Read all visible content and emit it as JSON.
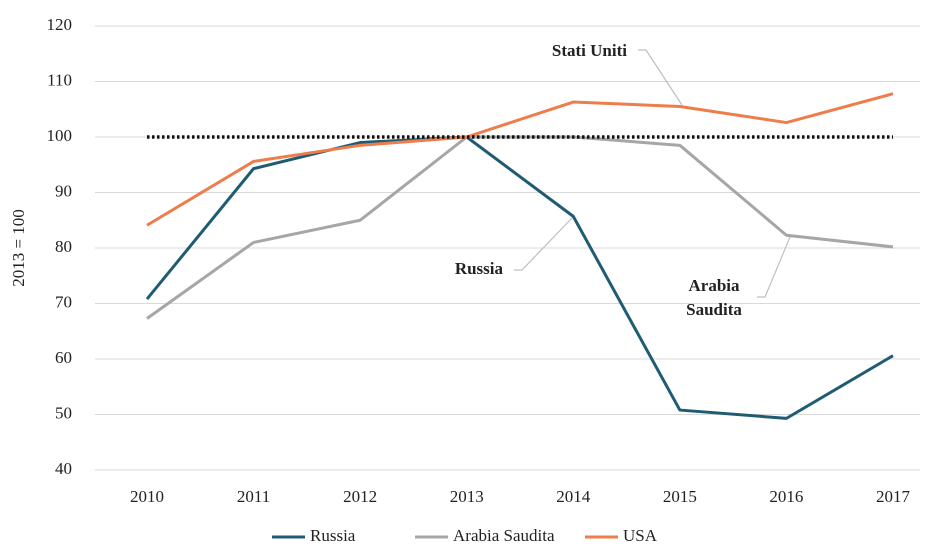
{
  "chart_data": {
    "type": "line",
    "y_label": "2013 = 100",
    "x": [
      "2010",
      "2011",
      "2012",
      "2013",
      "2014",
      "2015",
      "2016",
      "2017"
    ],
    "series": [
      {
        "name": "Russia",
        "color": "#1f5c73",
        "values": [
          70.8,
          94.3,
          99,
          100,
          85.7,
          50.8,
          49.3,
          60.6
        ]
      },
      {
        "name": "Arabia Saudita",
        "color": "#a6a6a6",
        "values": [
          67.3,
          81,
          85,
          100,
          100,
          98.5,
          82.3,
          80.2
        ]
      },
      {
        "name": "USA",
        "color": "#ed7d4b",
        "values": [
          84.1,
          95.6,
          98.5,
          100,
          106.3,
          105.5,
          102.6,
          107.8
        ]
      }
    ],
    "reference_line": 100,
    "ylim": [
      40,
      120
    ],
    "yticks": [
      40,
      50,
      60,
      70,
      80,
      90,
      100,
      110,
      120
    ],
    "grid": true,
    "legend": "bottom",
    "annotations": [
      {
        "lines": [
          "Stati Uniti"
        ]
      },
      {
        "lines": [
          "Russia"
        ]
      },
      {
        "lines": [
          "Arabia",
          "Saudita"
        ]
      }
    ]
  }
}
